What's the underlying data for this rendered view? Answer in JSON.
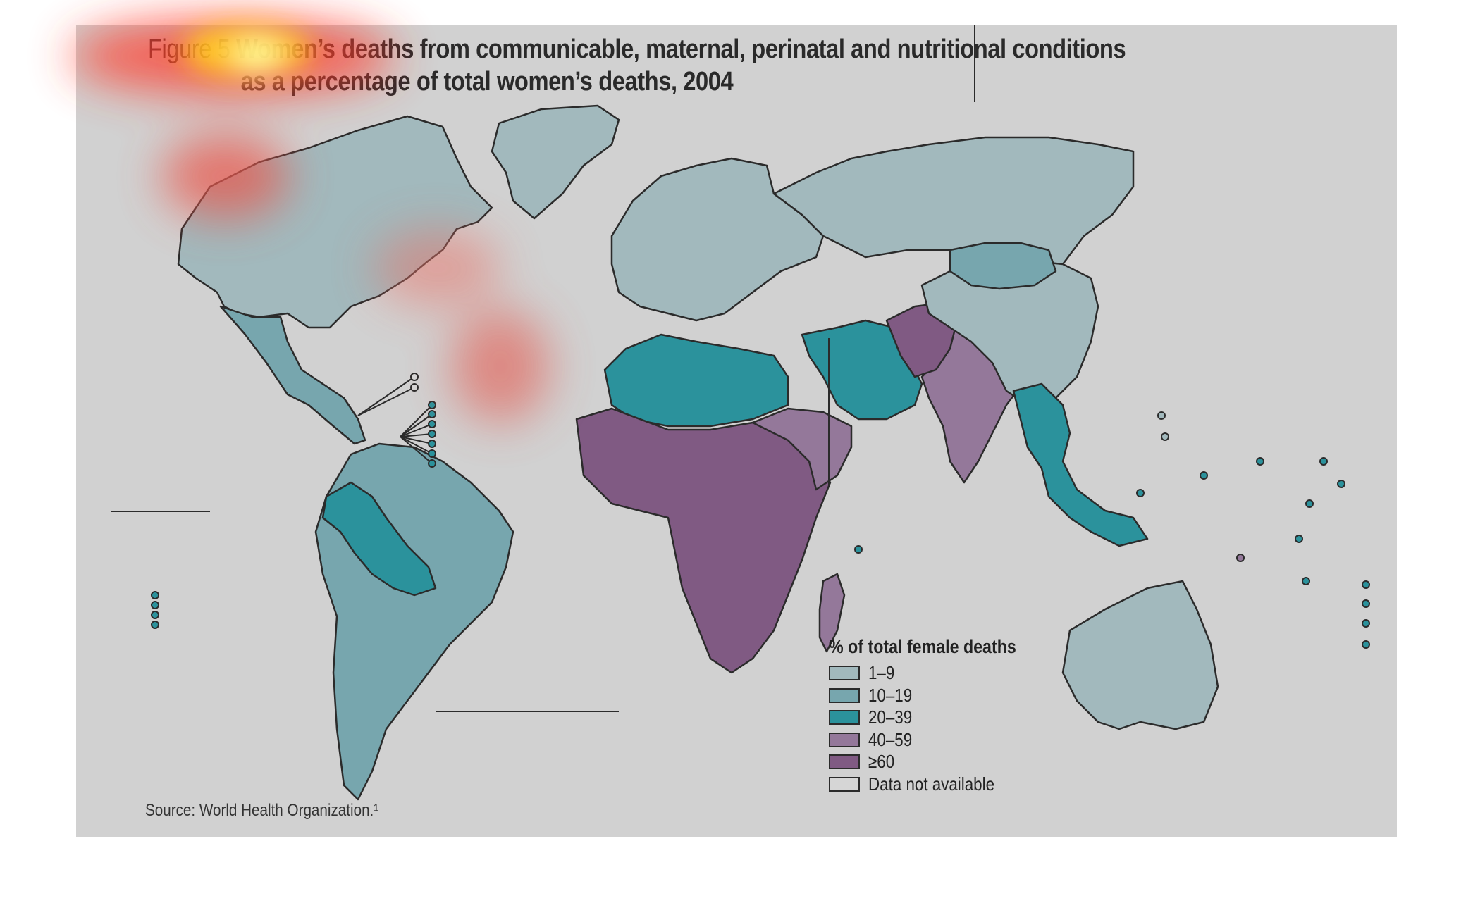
{
  "figure": {
    "label": "Figure 5",
    "title_line1": "Women’s deaths from communicable, maternal, perinatal and nutritional conditions",
    "title_line2": "as a percentage of total women’s deaths, 2004"
  },
  "legend": {
    "title": "% of total female deaths",
    "items": [
      {
        "label": "1–9",
        "color": "#a2b9bd"
      },
      {
        "label": "10–19",
        "color": "#77a6ae"
      },
      {
        "label": "20–39",
        "color": "#2b929c"
      },
      {
        "label": "40–59",
        "color": "#94789a"
      },
      {
        "label": "≥60",
        "color": "#805a83"
      },
      {
        "label": "Data not available",
        "color": "#d6d6d6"
      }
    ]
  },
  "source": "Source: World Health Organization.¹",
  "colors": {
    "panel_background": "#d1d1d1",
    "border": "#2b2b2b"
  },
  "regions": [
    {
      "name": "north-america",
      "category": "1–9"
    },
    {
      "name": "greenland",
      "category": "1–9"
    },
    {
      "name": "mexico-central-america",
      "category": "10–19"
    },
    {
      "name": "south-america",
      "category": "10–19"
    },
    {
      "name": "andean-countries",
      "category": "20–39"
    },
    {
      "name": "europe",
      "category": "1–9"
    },
    {
      "name": "russia",
      "category": "1–9"
    },
    {
      "name": "north-africa",
      "category": "20–39"
    },
    {
      "name": "sub-saharan-africa",
      "category": "≥60"
    },
    {
      "name": "sudan-horn",
      "category": "40–59"
    },
    {
      "name": "middle-east",
      "category": "20–39"
    },
    {
      "name": "south-asia",
      "category": "40–59"
    },
    {
      "name": "afghanistan-pakistan",
      "category": "≥60"
    },
    {
      "name": "china-east-asia",
      "category": "1–9"
    },
    {
      "name": "mongolia",
      "category": "10–19"
    },
    {
      "name": "southeast-asia",
      "category": "20–39"
    },
    {
      "name": "madagascar",
      "category": "40–59"
    },
    {
      "name": "australia-new-zealand",
      "category": "1–9"
    }
  ]
}
